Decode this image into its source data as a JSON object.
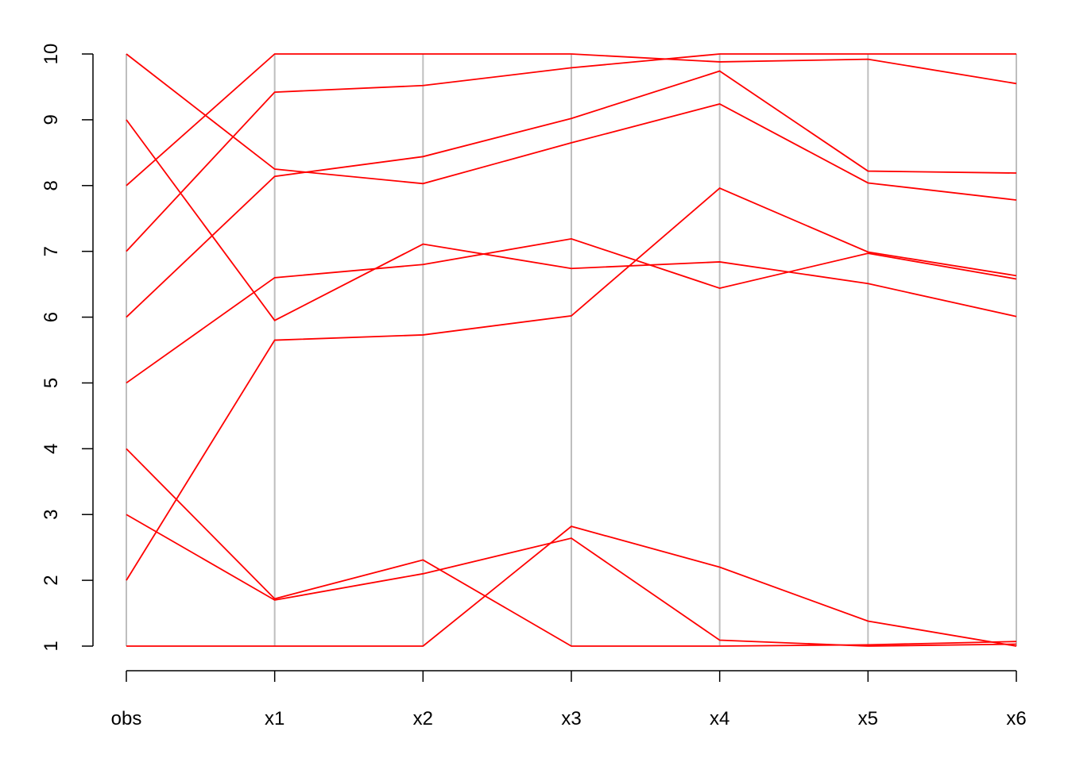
{
  "chart_data": {
    "type": "parallel",
    "categories": [
      "obs",
      "x1",
      "x2",
      "x3",
      "x4",
      "x5",
      "x6"
    ],
    "ylim": [
      1,
      10
    ],
    "yticks": [
      1,
      2,
      3,
      4,
      5,
      6,
      7,
      8,
      9,
      10
    ],
    "axis_color": "#bebebe",
    "series": [
      {
        "color": "#ff0000",
        "values": [
          10,
          8.25,
          8.03,
          8.65,
          9.24,
          8.04,
          7.78
        ]
      },
      {
        "color": "#ff0000",
        "values": [
          9,
          5.95,
          7.11,
          6.74,
          6.84,
          6.51,
          6.01
        ]
      },
      {
        "color": "#ff0000",
        "values": [
          8,
          10,
          10,
          10,
          9.88,
          9.92,
          9.55
        ]
      },
      {
        "color": "#ff0000",
        "values": [
          7,
          9.42,
          9.52,
          9.79,
          10,
          10,
          10
        ]
      },
      {
        "color": "#ff0000",
        "values": [
          6,
          8.14,
          8.44,
          9.02,
          9.74,
          8.22,
          8.19
        ]
      },
      {
        "color": "#ff0000",
        "values": [
          5,
          6.6,
          6.8,
          7.19,
          6.44,
          6.97,
          6.58
        ]
      },
      {
        "color": "#ff0000",
        "values": [
          2,
          5.65,
          5.73,
          6.02,
          7.96,
          6.99,
          6.63
        ]
      },
      {
        "color": "#ff0000",
        "values": [
          4,
          1.72,
          2.31,
          1,
          1,
          1.02,
          1.07
        ]
      },
      {
        "color": "#ff0000",
        "values": [
          3,
          1.7,
          2.1,
          2.64,
          1.09,
          1,
          1.03
        ]
      },
      {
        "color": "#ff0000",
        "values": [
          1,
          1,
          1,
          2.82,
          2.2,
          1.38,
          1
        ]
      }
    ]
  }
}
